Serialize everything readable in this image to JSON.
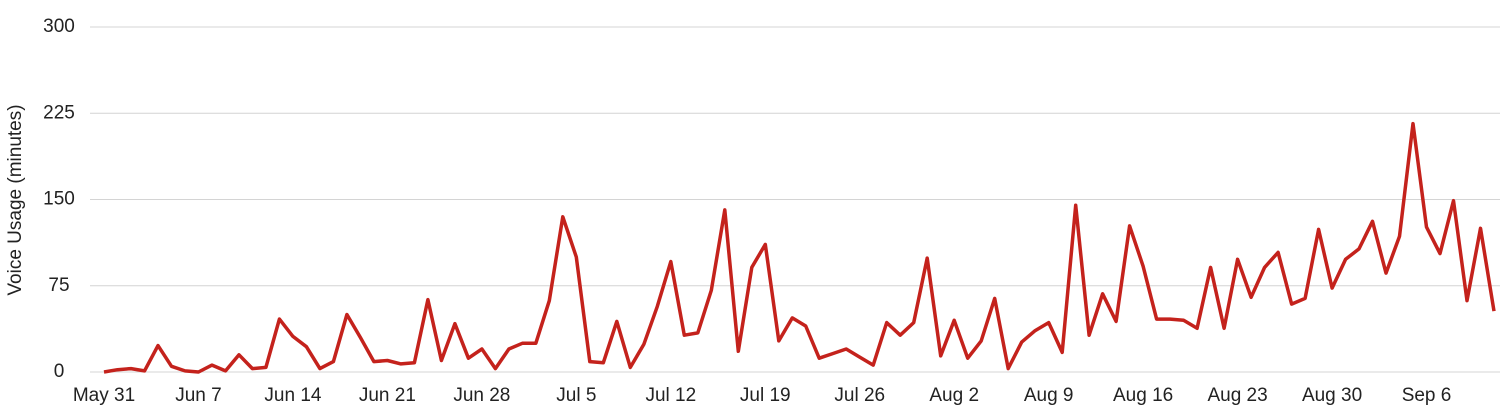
{
  "chart_data": {
    "type": "line",
    "y_label": "Voice Usage (minutes)",
    "categories": [
      "May 31",
      null,
      null,
      null,
      null,
      null,
      null,
      "Jun 7",
      null,
      null,
      null,
      null,
      null,
      null,
      "Jun 14",
      null,
      null,
      null,
      null,
      null,
      null,
      "Jun 21",
      null,
      null,
      null,
      null,
      null,
      null,
      "Jun 28",
      null,
      null,
      null,
      null,
      null,
      null,
      "Jul 5",
      null,
      null,
      null,
      null,
      null,
      null,
      "Jul 12",
      null,
      null,
      null,
      null,
      null,
      null,
      "Jul 19",
      null,
      null,
      null,
      null,
      null,
      null,
      "Jul 26",
      null,
      null,
      null,
      null,
      null,
      null,
      "Aug 2",
      null,
      null,
      null,
      null,
      null,
      null,
      "Aug 9",
      null,
      null,
      null,
      null,
      null,
      null,
      "Aug 16",
      null,
      null,
      null,
      null,
      null,
      null,
      "Aug 23",
      null,
      null,
      null,
      null,
      null,
      null,
      "Aug 30",
      null,
      null,
      null,
      null,
      null,
      null,
      "Sep 6",
      null,
      null,
      null,
      null,
      null
    ],
    "series": [
      {
        "color": "#c4221c",
        "values": [
          0,
          2,
          3,
          1,
          23,
          5,
          1,
          0,
          6,
          1,
          15,
          3,
          4,
          46,
          31,
          22,
          3,
          9,
          50,
          30,
          9,
          10,
          7,
          8,
          63,
          10,
          42,
          12,
          20,
          3,
          20,
          25,
          25,
          62,
          135,
          100,
          9,
          8,
          44,
          4,
          24,
          57,
          96,
          32,
          34,
          71,
          141,
          18,
          91,
          111,
          27,
          47,
          40,
          12,
          16,
          20,
          13,
          6,
          43,
          32,
          43,
          99,
          14,
          45,
          12,
          27,
          64,
          3,
          26,
          36,
          43,
          17,
          145,
          32,
          68,
          44,
          127,
          92,
          46,
          46,
          45,
          38,
          91,
          38,
          98,
          65,
          91,
          104,
          59,
          64,
          124,
          73,
          98,
          107,
          131,
          86,
          118,
          216,
          126,
          103,
          149,
          62,
          125,
          53
        ]
      }
    ],
    "ylim": [
      0,
      300
    ],
    "yticks": [
      0,
      75,
      150,
      225,
      300
    ],
    "grid": true
  }
}
